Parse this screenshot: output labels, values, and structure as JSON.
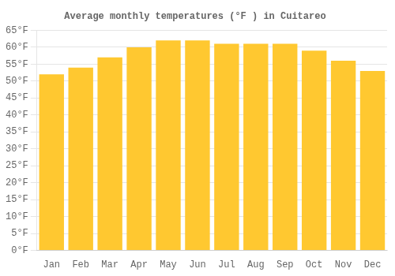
{
  "chart_data": {
    "type": "bar",
    "title": "Average monthly temperatures (°F ) in Cuitareo",
    "categories": [
      "Jan",
      "Feb",
      "Mar",
      "Apr",
      "May",
      "Jun",
      "Jul",
      "Aug",
      "Sep",
      "Oct",
      "Nov",
      "Dec"
    ],
    "values": [
      52,
      54,
      57,
      60,
      62,
      62,
      61,
      61,
      61,
      59,
      56,
      53
    ],
    "color": "#FFC830",
    "ylim": [
      0,
      65
    ],
    "yticks": [
      {
        "value": 0,
        "label": "0°F"
      },
      {
        "value": 5,
        "label": "5°F"
      },
      {
        "value": 10,
        "label": "10°F"
      },
      {
        "value": 15,
        "label": "15°F"
      },
      {
        "value": 20,
        "label": "20°F"
      },
      {
        "value": 25,
        "label": "25°F"
      },
      {
        "value": 30,
        "label": "30°F"
      },
      {
        "value": 35,
        "label": "35°F"
      },
      {
        "value": 40,
        "label": "40°F"
      },
      {
        "value": 45,
        "label": "45°F"
      },
      {
        "value": 50,
        "label": "50°F"
      },
      {
        "value": 55,
        "label": "55°F"
      },
      {
        "value": 60,
        "label": "60°F"
      },
      {
        "value": 65,
        "label": "65°F"
      }
    ],
    "grid": true
  }
}
